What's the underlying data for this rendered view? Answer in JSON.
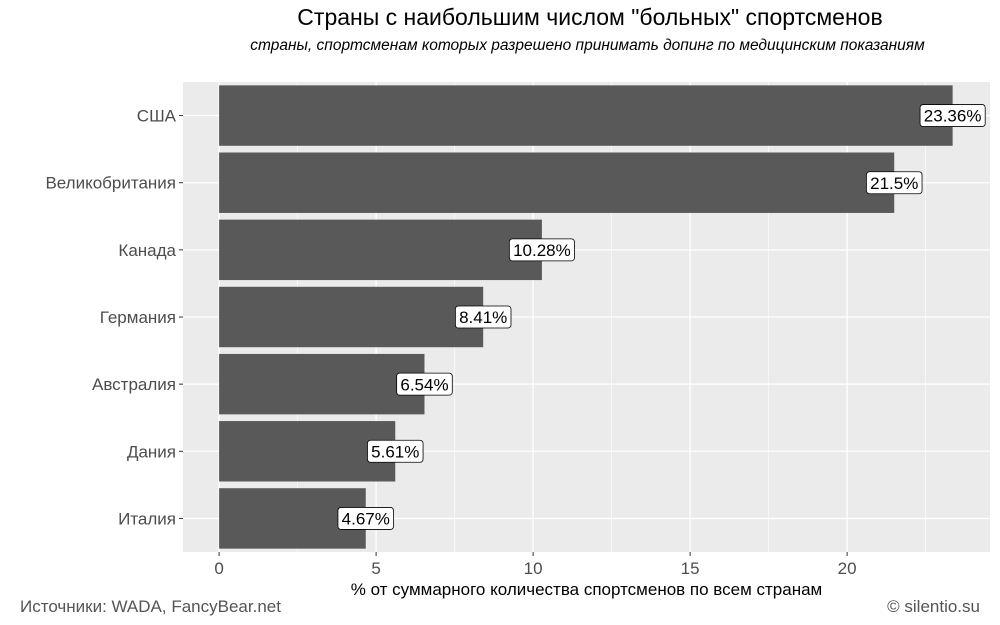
{
  "chart_data": {
    "type": "bar",
    "orientation": "horizontal",
    "title": "Страны с наибольшим числом \"больных\" спортсменов",
    "subtitle": "страны, спортсменам которых разрешено принимать допинг по медицинским показаниям",
    "xlabel": "% от суммарного количества спортсменов по всем странам",
    "ylabel": "",
    "categories": [
      "США",
      "Великобритания",
      "Канада",
      "Германия",
      "Австралия",
      "Дания",
      "Италия"
    ],
    "values": [
      23.36,
      21.5,
      10.28,
      8.41,
      6.54,
      5.61,
      4.67
    ],
    "labels": [
      "23.36%",
      "21.5%",
      "10.28%",
      "8.41%",
      "6.54%",
      "5.61%",
      "4.67%"
    ],
    "xlim": [
      -1.15,
      24.55
    ],
    "xticks": [
      0,
      5,
      10,
      15,
      20
    ],
    "grid": true,
    "colors": {
      "bar": "#595959",
      "panel": "#ebebeb",
      "grid": "#ffffff",
      "axis_text": "#4d4d4d"
    }
  },
  "footer": {
    "source": "Источники: WADA, FancyBear.net",
    "copyright": "© silentio.su"
  }
}
